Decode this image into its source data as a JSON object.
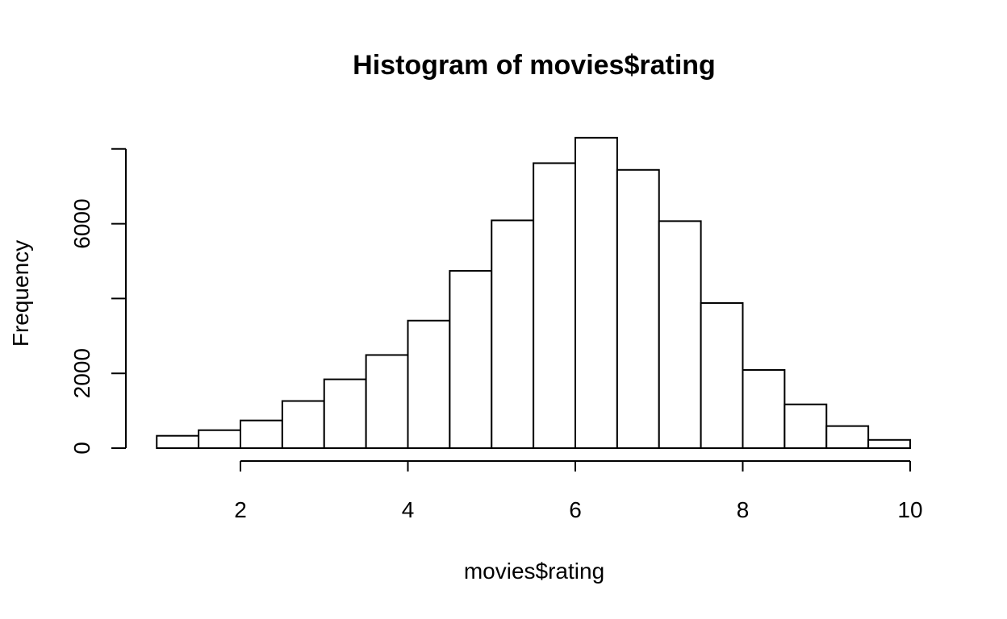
{
  "chart_data": {
    "type": "bar",
    "subtype": "histogram",
    "title": "Histogram of movies$rating",
    "xlabel": "movies$rating",
    "ylabel": "Frequency",
    "bin_edges": [
      1,
      1.5,
      2,
      2.5,
      3,
      3.5,
      4,
      4.5,
      5,
      5.5,
      6,
      6.5,
      7,
      7.5,
      8,
      8.5,
      9,
      9.5,
      10
    ],
    "values": [
      330,
      480,
      740,
      1260,
      1840,
      2490,
      3410,
      4740,
      6090,
      7620,
      8300,
      7440,
      6070,
      3880,
      2090,
      1170,
      590,
      220
    ],
    "xlim": [
      1,
      10
    ],
    "ylim": [
      0,
      8300
    ],
    "x_ticks": [
      2,
      4,
      6,
      8,
      10
    ],
    "x_tick_labels": [
      "2",
      "4",
      "6",
      "8",
      "10"
    ],
    "y_ticks": [
      0,
      2000,
      4000,
      6000,
      8000
    ],
    "y_tick_labels": [
      "0",
      "2000",
      "",
      "6000",
      ""
    ],
    "grid": false,
    "legend": false,
    "bar_fill": "#ffffff",
    "bar_stroke": "#000000"
  }
}
